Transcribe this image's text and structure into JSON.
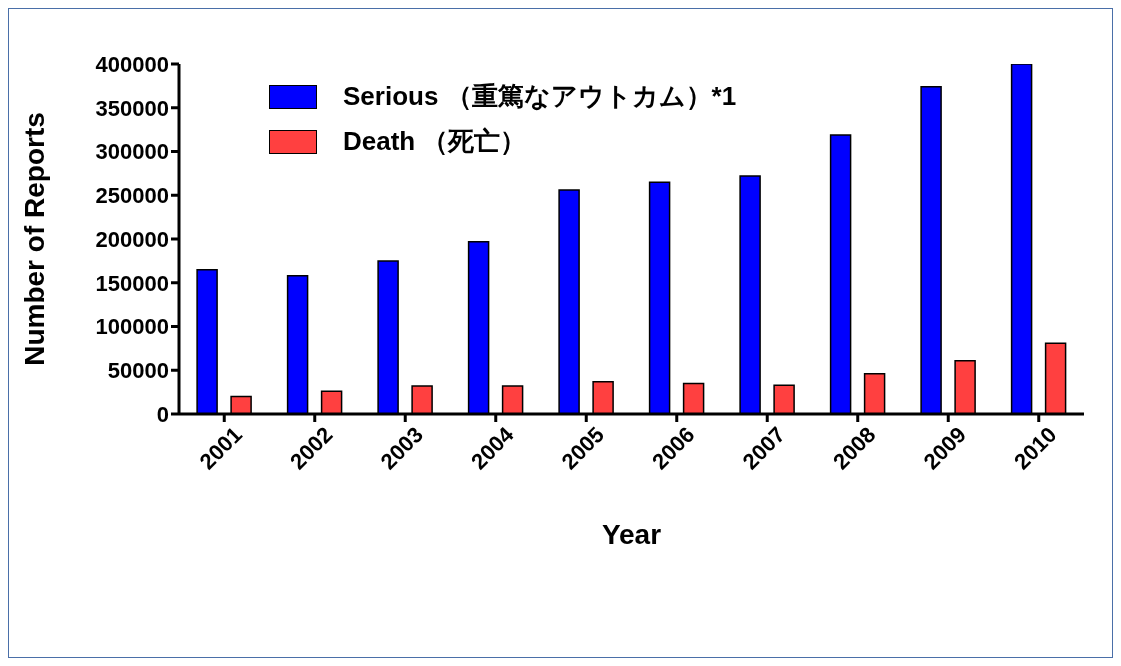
{
  "chart_data": {
    "type": "bar",
    "xlabel": "Year",
    "ylabel": "Number of Reports",
    "categories": [
      "2001",
      "2002",
      "2003",
      "2004",
      "2005",
      "2006",
      "2007",
      "2008",
      "2009",
      "2010"
    ],
    "series": [
      {
        "name": "Serious （重篤なアウトカム）*1",
        "color": "#0000ff",
        "values": [
          165000,
          158000,
          175000,
          197000,
          256000,
          265000,
          272000,
          319000,
          374000,
          400000
        ]
      },
      {
        "name": "Death （死亡）",
        "color": "#ff4040",
        "values": [
          20000,
          26000,
          32000,
          32000,
          37000,
          35000,
          33000,
          46000,
          61000,
          81000
        ]
      }
    ],
    "ylim": [
      0,
      400000
    ],
    "yticks": [
      0,
      50000,
      100000,
      150000,
      200000,
      250000,
      300000,
      350000,
      400000
    ],
    "grid": false,
    "legend": "top left"
  }
}
